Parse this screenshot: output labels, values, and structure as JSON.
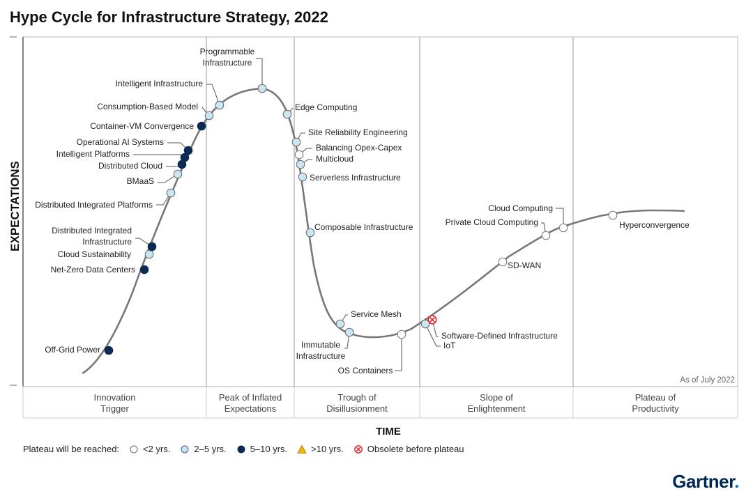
{
  "title": "Hype Cycle for Infrastructure Strategy, 2022",
  "as_of": "As of July 2022",
  "colors": {
    "lt2": "#ffffff",
    "y2to5": "#c9e6f3",
    "y5to10": "#0d2a52",
    "gt10": "#f2b705",
    "obsolete": "#e32128",
    "curve": "#777777"
  },
  "chart_data": {
    "type": "hype-cycle",
    "title": "Hype Cycle for Infrastructure Strategy, 2022",
    "xlabel": "TIME",
    "ylabel": "EXPECTATIONS",
    "phases": [
      "Innovation\nTrigger",
      "Peak of Inflated\nExpectations",
      "Trough of\nDisillusionment",
      "Slope of\nEnlightenment",
      "Plateau of\nProductivity"
    ],
    "points": [
      {
        "name": "Off-Grid Power",
        "category": "5-10"
      },
      {
        "name": "Net-Zero Data Centers",
        "category": "5-10"
      },
      {
        "name": "Cloud Sustainability",
        "category": "2-5"
      },
      {
        "name": "Distributed Integrated\nInfrastructure",
        "category": "5-10"
      },
      {
        "name": "Distributed Integrated Platforms",
        "category": "2-5"
      },
      {
        "name": "BMaaS",
        "category": "2-5"
      },
      {
        "name": "Distributed Cloud",
        "category": "5-10"
      },
      {
        "name": "Intelligent Platforms",
        "category": "5-10"
      },
      {
        "name": "Operational AI Systems",
        "category": "5-10"
      },
      {
        "name": "Container-VM Convergence",
        "category": "5-10"
      },
      {
        "name": "Consumption-Based Model",
        "category": "2-5"
      },
      {
        "name": "Intelligent Infrastructure",
        "category": "2-5"
      },
      {
        "name": "Programmable\nInfrastructure",
        "category": "2-5"
      },
      {
        "name": "Edge Computing",
        "category": "2-5"
      },
      {
        "name": "Site Reliability Engineering",
        "category": "2-5"
      },
      {
        "name": "Balancing Opex-Capex",
        "category": "lt2"
      },
      {
        "name": "Multicloud",
        "category": "2-5"
      },
      {
        "name": "Serverless Infrastructure",
        "category": "2-5"
      },
      {
        "name": "Composable Infrastructure",
        "category": "2-5"
      },
      {
        "name": "Service Mesh",
        "category": "2-5"
      },
      {
        "name": "Immutable\nInfrastructure",
        "category": "2-5"
      },
      {
        "name": "OS Containers",
        "category": "lt2"
      },
      {
        "name": "IoT",
        "category": "2-5"
      },
      {
        "name": "Software-Defined Infrastructure",
        "category": "obsolete"
      },
      {
        "name": "SD-WAN",
        "category": "lt2"
      },
      {
        "name": "Private Cloud Computing",
        "category": "lt2"
      },
      {
        "name": "Cloud Computing",
        "category": "lt2"
      },
      {
        "name": "Hyperconvergence",
        "category": "lt2"
      }
    ]
  },
  "legend": {
    "title": "Plateau will be reached:",
    "items": [
      {
        "key": "lt2",
        "label": "<2 yrs."
      },
      {
        "key": "2-5",
        "label": "2–5 yrs."
      },
      {
        "key": "5-10",
        "label": "5–10 yrs."
      },
      {
        "key": "gt10",
        "label": ">10 yrs."
      },
      {
        "key": "obsolete",
        "label": "Obsolete before plateau"
      }
    ]
  },
  "brand": {
    "name": "Gartner",
    "dot": "."
  }
}
